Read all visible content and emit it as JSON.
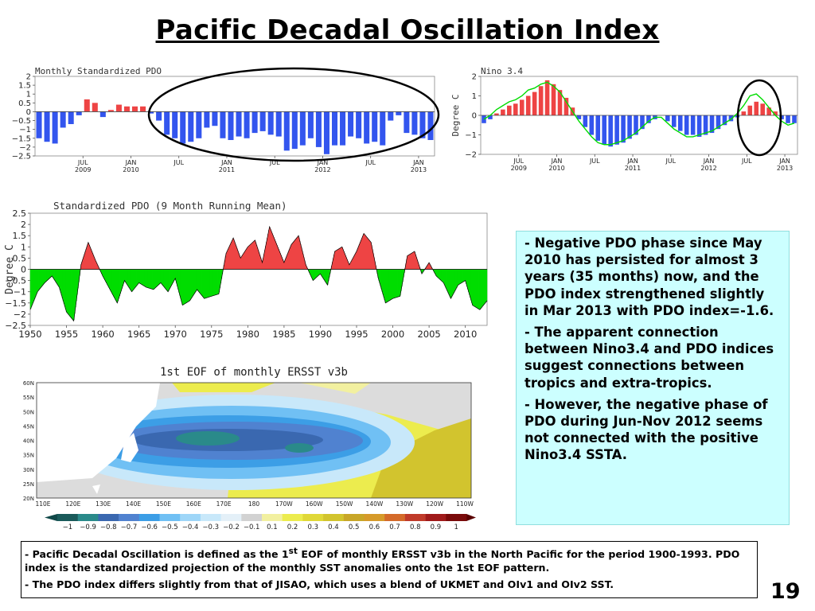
{
  "slide": {
    "title": "Pacific Decadal Oscillation Index",
    "page_number": "19",
    "bullets": [
      {
        "dash": "- ",
        "text": "Negative PDO phase since May 2010 has persisted for almost 3 years (35 months) now, and the PDO index strengthened slightly in Mar 2013 with PDO index=-1.6."
      },
      {
        "dash": "- ",
        "text": "The apparent connection between Nino3.4 and PDO indices suggest connections between tropics and extra-tropics."
      },
      {
        "dash": "- ",
        "text": "However, the negative phase of PDO during Jun-Nov 2012 seems not connected with the positive Nino3.4 SSTA."
      }
    ],
    "footnote": {
      "line1_pre": "Pacific Decadal Oscillation is defined as the 1",
      "line1_sup": "st",
      "line1_post": " EOF of monthly ERSST v3b in the North Pacific for the period 1900-1993. PDO index is the standardized projection of the monthly SST anomalies onto  the 1st EOF pattern.",
      "line2": "The PDO index differs slightly from that of JISAO, which uses a blend of UKMET and OIv1 and OIv2 SST."
    }
  },
  "colors": {
    "negative_blue": "#3355ee",
    "positive_red": "#ee4444",
    "running_green": "#00dd00",
    "note_bg": "#ccffff"
  },
  "chart_data": [
    {
      "id": "monthly-pdo",
      "type": "bar",
      "title": "Monthly Standardized PDO",
      "ylim": [
        -2.5,
        2
      ],
      "yticks": [
        "2",
        "1.5",
        "1",
        "0.5",
        "0",
        "−0.5",
        "−1",
        "−1.5",
        "−2",
        "−2.5"
      ],
      "xticks": [
        {
          "label": "JUL",
          "sub": "2009",
          "index": 6
        },
        {
          "label": "JAN",
          "sub": "2010",
          "index": 12
        },
        {
          "label": "JUL",
          "sub": "",
          "index": 18
        },
        {
          "label": "JAN",
          "sub": "2011",
          "index": 24
        },
        {
          "label": "JUL",
          "sub": "",
          "index": 30
        },
        {
          "label": "JAN",
          "sub": "2012",
          "index": 36
        },
        {
          "label": "JUL",
          "sub": "",
          "index": 42
        },
        {
          "label": "JAN",
          "sub": "2013",
          "index": 48
        }
      ],
      "values": [
        -1.5,
        -1.7,
        -1.8,
        -0.9,
        -0.7,
        -0.2,
        0.7,
        0.5,
        -0.3,
        0.1,
        0.4,
        0.3,
        0.3,
        0.3,
        -0.1,
        -0.5,
        -1.3,
        -1.5,
        -1.8,
        -1.7,
        -1.5,
        -0.9,
        -0.8,
        -1.5,
        -1.6,
        -1.4,
        -1.5,
        -1.2,
        -1.1,
        -1.3,
        -1.4,
        -2.2,
        -2.1,
        -1.9,
        -1.5,
        -2.0,
        -2.4,
        -1.9,
        -1.9,
        -1.4,
        -1.5,
        -1.8,
        -1.7,
        -1.9,
        -0.5,
        -0.2,
        -1.2,
        -1.3,
        -1.5,
        -1.6
      ]
    },
    {
      "id": "nino34",
      "type": "bar",
      "title": "Nino 3.4",
      "ylabel": "Degree C",
      "ylim": [
        -2,
        2
      ],
      "yticks": [
        "2",
        "1",
        "0",
        "−1",
        "−2"
      ],
      "xticks": [
        {
          "label": "JUL",
          "sub": "2009",
          "index": 6
        },
        {
          "label": "JAN",
          "sub": "2010",
          "index": 12
        },
        {
          "label": "JUL",
          "sub": "",
          "index": 18
        },
        {
          "label": "JAN",
          "sub": "2011",
          "index": 24
        },
        {
          "label": "JUL",
          "sub": "",
          "index": 30
        },
        {
          "label": "JAN",
          "sub": "2012",
          "index": 36
        },
        {
          "label": "JUL",
          "sub": "",
          "index": 42
        },
        {
          "label": "JAN",
          "sub": "2013",
          "index": 48
        }
      ],
      "values": [
        -0.4,
        -0.2,
        0.1,
        0.3,
        0.5,
        0.6,
        0.8,
        1.0,
        1.2,
        1.5,
        1.8,
        1.6,
        1.3,
        0.9,
        0.4,
        -0.2,
        -0.6,
        -1.0,
        -1.3,
        -1.5,
        -1.6,
        -1.5,
        -1.4,
        -1.2,
        -1.0,
        -0.7,
        -0.4,
        -0.2,
        0.0,
        -0.3,
        -0.6,
        -0.8,
        -1.0,
        -1.0,
        -1.1,
        -1.0,
        -0.9,
        -0.7,
        -0.5,
        -0.3,
        -0.1,
        0.2,
        0.5,
        0.7,
        0.6,
        0.4,
        0.2,
        -0.2,
        -0.4,
        -0.4
      ],
      "line_values": [
        -0.2,
        0.0,
        0.3,
        0.5,
        0.7,
        0.8,
        1.0,
        1.3,
        1.4,
        1.6,
        1.7,
        1.5,
        1.2,
        0.7,
        0.2,
        -0.3,
        -0.7,
        -1.1,
        -1.4,
        -1.5,
        -1.5,
        -1.4,
        -1.3,
        -1.1,
        -0.9,
        -0.6,
        -0.3,
        -0.1,
        -0.1,
        -0.4,
        -0.7,
        -0.9,
        -1.1,
        -1.1,
        -1.0,
        -0.9,
        -0.8,
        -0.6,
        -0.4,
        -0.2,
        0.1,
        0.5,
        1.0,
        1.1,
        0.8,
        0.4,
        0.0,
        -0.3,
        -0.5,
        -0.4
      ]
    },
    {
      "id": "pdo-running-mean",
      "type": "area",
      "title": "Standardized PDO (9 Month Running Mean)",
      "ylabel": "Degree C",
      "ylim": [
        -2.5,
        2.5
      ],
      "xlim": [
        1950,
        2013
      ],
      "yticks": [
        "2.5",
        "2",
        "1.5",
        "1",
        "0.5",
        "0",
        "−0.5",
        "−1",
        "−1.5",
        "−2",
        "−2.5"
      ],
      "xticks": [
        "1950",
        "1955",
        "1960",
        "1965",
        "1970",
        "1975",
        "1980",
        "1985",
        "1990",
        "1995",
        "2000",
        "2005",
        "2010"
      ],
      "x": [
        1950,
        1951,
        1952,
        1953,
        1954,
        1955,
        1956,
        1957,
        1958,
        1959,
        1960,
        1961,
        1962,
        1963,
        1964,
        1965,
        1966,
        1967,
        1968,
        1969,
        1970,
        1971,
        1972,
        1973,
        1974,
        1975,
        1976,
        1977,
        1978,
        1979,
        1980,
        1981,
        1982,
        1983,
        1984,
        1985,
        1986,
        1987,
        1988,
        1989,
        1990,
        1991,
        1992,
        1993,
        1994,
        1995,
        1996,
        1997,
        1998,
        1999,
        2000,
        2001,
        2002,
        2003,
        2004,
        2005,
        2006,
        2007,
        2008,
        2009,
        2010,
        2011,
        2012,
        2013
      ],
      "values": [
        -1.8,
        -1.0,
        -0.6,
        -0.3,
        -0.8,
        -1.9,
        -2.3,
        0.2,
        1.2,
        0.4,
        -0.3,
        -0.9,
        -1.5,
        -0.5,
        -1.0,
        -0.6,
        -0.8,
        -0.9,
        -0.6,
        -1.0,
        -0.4,
        -1.6,
        -1.4,
        -0.9,
        -1.3,
        -1.2,
        -1.1,
        0.7,
        1.4,
        0.5,
        1.0,
        1.3,
        0.3,
        1.9,
        1.1,
        0.3,
        1.1,
        1.5,
        0.2,
        -0.5,
        -0.2,
        -0.7,
        0.8,
        1.0,
        0.2,
        0.8,
        1.6,
        1.2,
        -0.4,
        -1.5,
        -1.3,
        -1.2,
        0.6,
        0.8,
        -0.2,
        0.3,
        -0.3,
        -0.6,
        -1.3,
        -0.7,
        -0.5,
        -1.6,
        -1.8,
        -1.4
      ]
    },
    {
      "id": "eof-map",
      "type": "heatmap",
      "title": "1st EOF of monthly ERSST v3b",
      "lat_labels": [
        "60N",
        "55N",
        "50N",
        "45N",
        "40N",
        "35N",
        "30N",
        "25N",
        "20N"
      ],
      "lon_labels": [
        "110E",
        "120E",
        "130E",
        "140E",
        "150E",
        "160E",
        "170E",
        "180",
        "170W",
        "160W",
        "150W",
        "140W",
        "130W",
        "120W",
        "110W"
      ],
      "colorbar_labels": [
        "−1",
        "−0.9",
        "−0.8",
        "−0.7",
        "−0.6",
        "−0.5",
        "−0.4",
        "−0.3",
        "−0.2",
        "−0.1",
        "0.1",
        "0.2",
        "0.3",
        "0.4",
        "0.5",
        "0.6",
        "0.7",
        "0.8",
        "0.9",
        "1"
      ],
      "colorbar_colors": [
        "#1a5a5a",
        "#2a8a8a",
        "#3a68b0",
        "#5082d0",
        "#3c9ee6",
        "#70c0f4",
        "#9ed6f8",
        "#c8e8fa",
        "#e4f0f8",
        "#d2d2d2",
        "#f2f0a0",
        "#ecec4e",
        "#e0d838",
        "#d2c42e",
        "#c8a628",
        "#d69a2a",
        "#d46a2a",
        "#c03a2a",
        "#a01a1a",
        "#7a0a0a"
      ]
    }
  ]
}
